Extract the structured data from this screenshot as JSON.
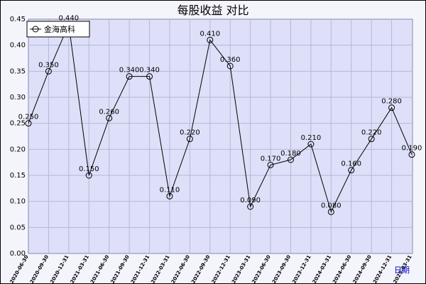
{
  "chart_data": {
    "type": "line",
    "title": "每股收益 对比",
    "xlabel": "日期",
    "ylabel": "",
    "ylim": [
      0,
      0.45
    ],
    "yticks": [
      "0.00",
      "0.05",
      "0.10",
      "0.15",
      "0.20",
      "0.25",
      "0.30",
      "0.35",
      "0.40",
      "0.45"
    ],
    "grid": true,
    "legend": "top-left",
    "categories": [
      "2020-06-30",
      "2020-09-30",
      "2020-12-31",
      "2021-03-31",
      "2021-06-30",
      "2021-09-30",
      "2021-12-31",
      "2022-03-31",
      "2022-06-30",
      "2022-09-30",
      "2022-12-31",
      "2023-03-31",
      "2023-06-30",
      "2023-09-30",
      "2023-12-31",
      "2024-03-31",
      "2024-06-30",
      "2024-09-30",
      "2024-12-31",
      "2025-03-31"
    ],
    "series": [
      {
        "name": "金海高科",
        "color": "#000000",
        "values": [
          0.25,
          0.35,
          0.44,
          0.15,
          0.26,
          0.34,
          0.34,
          0.11,
          0.22,
          0.41,
          0.36,
          0.09,
          0.17,
          0.18,
          0.21,
          0.08,
          0.16,
          0.22,
          0.28,
          0.19
        ],
        "labels": [
          "0.250",
          "0.350",
          "0.440",
          "0.150",
          "0.260",
          "0.340",
          "0.340",
          "0.110",
          "0.220",
          "0.410",
          "0.360",
          "0.090",
          "0.170",
          "0.180",
          "0.210",
          "0.080",
          "0.160",
          "0.220",
          "0.280",
          "0.190"
        ]
      }
    ]
  }
}
